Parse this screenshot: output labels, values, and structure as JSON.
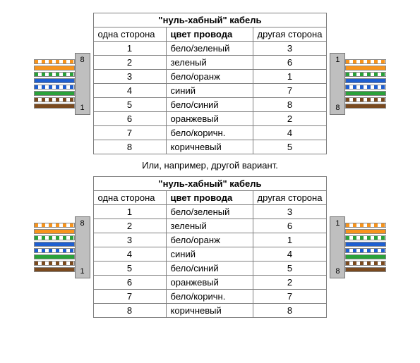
{
  "between_text": "Или, например, другой вариант.",
  "connector_pin_top": "8",
  "connector_pin_bottom": "1",
  "connector_pin_top_alt": "1",
  "connector_pin_bottom_alt": "8",
  "wire_colors": {
    "orange": "#f7941d",
    "green": "#2aa13a",
    "blue": "#1f5fd0",
    "brown": "#7a4a1f"
  },
  "panels": [
    {
      "title": "\"нуль-хабный\" кабель",
      "headers": [
        "одна сторона",
        "цвет провода",
        "другая сторона"
      ],
      "rows": [
        {
          "a": "1",
          "c": "бело/зеленый",
          "b": "3"
        },
        {
          "a": "2",
          "c": "зеленый",
          "b": "6"
        },
        {
          "a": "3",
          "c": "бело/оранж",
          "b": "1"
        },
        {
          "a": "4",
          "c": "синий",
          "b": "7"
        },
        {
          "a": "5",
          "c": "бело/синий",
          "b": "8"
        },
        {
          "a": "6",
          "c": "оранжевый",
          "b": "2"
        },
        {
          "a": "7",
          "c": "бело/коричн.",
          "b": "4"
        },
        {
          "a": "8",
          "c": "коричневый",
          "b": "5"
        }
      ],
      "left_cable": [
        "stripe-orange",
        "orange",
        "stripe-green",
        "blue",
        "stripe-blue",
        "green",
        "stripe-brown",
        "brown"
      ],
      "right_cable": [
        "stripe-orange",
        "orange",
        "stripe-green",
        "blue",
        "stripe-blue",
        "green",
        "stripe-brown",
        "brown"
      ]
    },
    {
      "title": "\"нуль-хабный\" кабель",
      "headers": [
        "одна сторона",
        "цвет провода",
        "другая сторона"
      ],
      "rows": [
        {
          "a": "1",
          "c": "бело/зеленый",
          "b": "3"
        },
        {
          "a": "2",
          "c": "зеленый",
          "b": "6"
        },
        {
          "a": "3",
          "c": "бело/оранж",
          "b": "1"
        },
        {
          "a": "4",
          "c": "синий",
          "b": "4"
        },
        {
          "a": "5",
          "c": "бело/синий",
          "b": "5"
        },
        {
          "a": "6",
          "c": "оранжевый",
          "b": "2"
        },
        {
          "a": "7",
          "c": "бело/коричн.",
          "b": "7"
        },
        {
          "a": "8",
          "c": "коричневый",
          "b": "8"
        }
      ],
      "left_cable": [
        "stripe-orange",
        "orange",
        "stripe-green",
        "blue",
        "stripe-blue",
        "green",
        "stripe-brown",
        "brown"
      ],
      "right_cable": [
        "stripe-orange",
        "orange",
        "stripe-green",
        "blue",
        "stripe-blue",
        "green",
        "stripe-brown",
        "brown"
      ]
    }
  ]
}
